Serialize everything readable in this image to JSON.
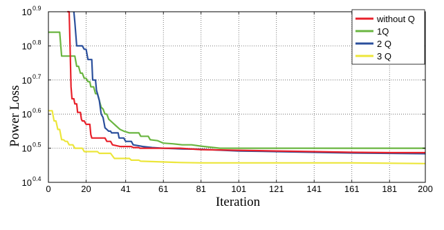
{
  "chart_data": {
    "type": "line",
    "xlabel": "Iteration",
    "ylabel": "Power  Loss",
    "xlim": [
      0,
      200
    ],
    "ylim_log10": [
      0.4,
      0.9
    ],
    "yscale": "log",
    "grid": true,
    "grid_style": "dotted",
    "legend_position": "top-right",
    "x_ticks": [
      "0",
      "20",
      "41",
      "61",
      "81",
      "101",
      "121",
      "141",
      "161",
      "181",
      "200"
    ],
    "x_tick_values": [
      0,
      20,
      41,
      61,
      81,
      101,
      121,
      141,
      161,
      181,
      200
    ],
    "y_ticks": [
      {
        "base": "10",
        "exp": "0.4",
        "value": 0.4
      },
      {
        "base": "10",
        "exp": "0.5",
        "value": 0.5
      },
      {
        "base": "10",
        "exp": "0.6",
        "value": 0.6
      },
      {
        "base": "10",
        "exp": "0.7",
        "value": 0.7
      },
      {
        "base": "10",
        "exp": "0.8",
        "value": 0.8
      },
      {
        "base": "10",
        "exp": "0.9",
        "value": 0.9
      }
    ],
    "series": [
      {
        "name": "without  Q",
        "color": "#e8202a",
        "points_log10": [
          [
            10,
            0.905
          ],
          [
            11,
            0.905
          ],
          [
            11.5,
            0.8
          ],
          [
            12,
            0.68
          ],
          [
            12.5,
            0.645
          ],
          [
            13.5,
            0.645
          ],
          [
            14,
            0.63
          ],
          [
            15,
            0.63
          ],
          [
            15.5,
            0.605
          ],
          [
            17,
            0.605
          ],
          [
            17.5,
            0.585
          ],
          [
            18,
            0.58
          ],
          [
            19,
            0.58
          ],
          [
            19.5,
            0.575
          ],
          [
            20,
            0.57
          ],
          [
            22,
            0.57
          ],
          [
            22.5,
            0.54
          ],
          [
            23,
            0.53
          ],
          [
            30,
            0.53
          ],
          [
            31,
            0.52
          ],
          [
            33,
            0.52
          ],
          [
            34,
            0.51
          ],
          [
            38,
            0.505
          ],
          [
            44,
            0.505
          ],
          [
            45,
            0.502
          ],
          [
            48,
            0.502
          ],
          [
            48.5,
            0.5
          ],
          [
            60,
            0.5
          ],
          [
            70,
            0.5
          ],
          [
            81,
            0.496
          ],
          [
            101,
            0.494
          ],
          [
            121,
            0.492
          ],
          [
            141,
            0.49
          ],
          [
            161,
            0.488
          ],
          [
            181,
            0.487
          ],
          [
            200,
            0.487
          ]
        ]
      },
      {
        "name": "1Q",
        "color": "#6ab540",
        "points_log10": [
          [
            0,
            0.84
          ],
          [
            6,
            0.84
          ],
          [
            7,
            0.77
          ],
          [
            14,
            0.77
          ],
          [
            15,
            0.74
          ],
          [
            16,
            0.74
          ],
          [
            17,
            0.72
          ],
          [
            18,
            0.72
          ],
          [
            19,
            0.705
          ],
          [
            20,
            0.705
          ],
          [
            21,
            0.695
          ],
          [
            22,
            0.695
          ],
          [
            22.5,
            0.68
          ],
          [
            24,
            0.68
          ],
          [
            25,
            0.66
          ],
          [
            26,
            0.66
          ],
          [
            27,
            0.64
          ],
          [
            28,
            0.62
          ],
          [
            29,
            0.615
          ],
          [
            30,
            0.6
          ],
          [
            31,
            0.6
          ],
          [
            32,
            0.585
          ],
          [
            34,
            0.575
          ],
          [
            36,
            0.565
          ],
          [
            38,
            0.555
          ],
          [
            40,
            0.55
          ],
          [
            43,
            0.545
          ],
          [
            48,
            0.545
          ],
          [
            49,
            0.535
          ],
          [
            53,
            0.535
          ],
          [
            54,
            0.525
          ],
          [
            58,
            0.522
          ],
          [
            61,
            0.515
          ],
          [
            66,
            0.513
          ],
          [
            71,
            0.51
          ],
          [
            76,
            0.51
          ],
          [
            81,
            0.506
          ],
          [
            86,
            0.503
          ],
          [
            91,
            0.5
          ],
          [
            101,
            0.5
          ],
          [
            121,
            0.5
          ],
          [
            141,
            0.5
          ],
          [
            161,
            0.5
          ],
          [
            181,
            0.5
          ],
          [
            200,
            0.5
          ]
        ]
      },
      {
        "name": "2 Q",
        "color": "#2a4f9c",
        "points_log10": [
          [
            13.5,
            0.905
          ],
          [
            14,
            0.87
          ],
          [
            15,
            0.8
          ],
          [
            18,
            0.8
          ],
          [
            19,
            0.79
          ],
          [
            20,
            0.79
          ],
          [
            21,
            0.76
          ],
          [
            23,
            0.76
          ],
          [
            23.5,
            0.7
          ],
          [
            25,
            0.7
          ],
          [
            25.5,
            0.67
          ],
          [
            26,
            0.66
          ],
          [
            27,
            0.64
          ],
          [
            28,
            0.6
          ],
          [
            29,
            0.59
          ],
          [
            30,
            0.56
          ],
          [
            31,
            0.555
          ],
          [
            32,
            0.55
          ],
          [
            33,
            0.55
          ],
          [
            33.5,
            0.545
          ],
          [
            37,
            0.545
          ],
          [
            37.5,
            0.53
          ],
          [
            40,
            0.53
          ],
          [
            41,
            0.52
          ],
          [
            44,
            0.52
          ],
          [
            45,
            0.51
          ],
          [
            48,
            0.507
          ],
          [
            50,
            0.505
          ],
          [
            55,
            0.502
          ],
          [
            61,
            0.5
          ],
          [
            71,
            0.498
          ],
          [
            81,
            0.497
          ],
          [
            101,
            0.492
          ],
          [
            121,
            0.49
          ],
          [
            141,
            0.488
          ],
          [
            161,
            0.486
          ],
          [
            181,
            0.485
          ],
          [
            200,
            0.484
          ]
        ]
      },
      {
        "name": "3 Q",
        "color": "#ece63a",
        "points_log10": [
          [
            0,
            0.61
          ],
          [
            2,
            0.61
          ],
          [
            3,
            0.58
          ],
          [
            4,
            0.58
          ],
          [
            5,
            0.555
          ],
          [
            6,
            0.555
          ],
          [
            7,
            0.525
          ],
          [
            8,
            0.525
          ],
          [
            9,
            0.52
          ],
          [
            10,
            0.52
          ],
          [
            11,
            0.51
          ],
          [
            13,
            0.51
          ],
          [
            14,
            0.5
          ],
          [
            18,
            0.5
          ],
          [
            19,
            0.49
          ],
          [
            26,
            0.49
          ],
          [
            27,
            0.485
          ],
          [
            30,
            0.485
          ],
          [
            33,
            0.485
          ],
          [
            35,
            0.47
          ],
          [
            43,
            0.47
          ],
          [
            44,
            0.465
          ],
          [
            48,
            0.465
          ],
          [
            49,
            0.462
          ],
          [
            60,
            0.46
          ],
          [
            70,
            0.458
          ],
          [
            81,
            0.457
          ],
          [
            101,
            0.457
          ],
          [
            121,
            0.457
          ],
          [
            141,
            0.457
          ],
          [
            161,
            0.457
          ],
          [
            181,
            0.456
          ],
          [
            200,
            0.455
          ]
        ]
      }
    ]
  }
}
